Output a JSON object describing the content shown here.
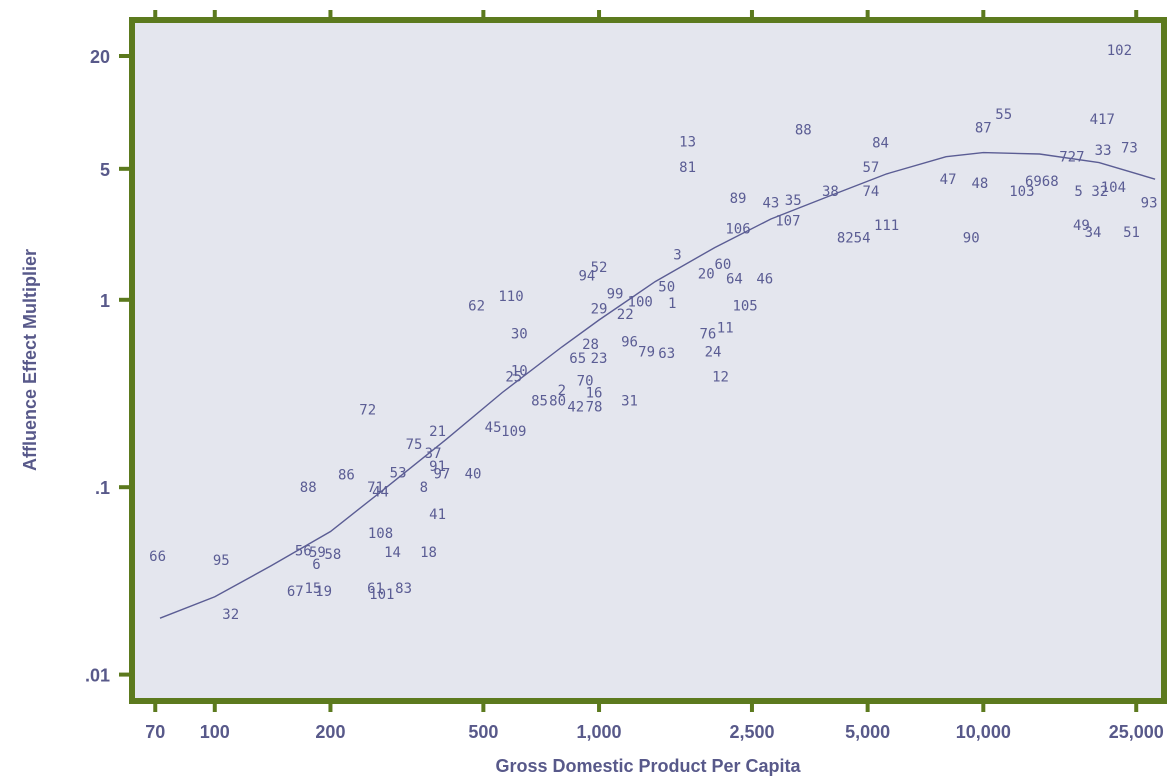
{
  "chart_data": {
    "type": "scatter",
    "title": "",
    "xlabel": "Gross Domestic Product Per Capita",
    "ylabel": "Affluence Effect Multiplier",
    "x_scale": "log",
    "y_scale": "log",
    "xlim": [
      62,
      29000
    ],
    "ylim": [
      0.0075,
      30
    ],
    "x_ticks": [
      {
        "value": 70,
        "label": "70"
      },
      {
        "value": 100,
        "label": "100"
      },
      {
        "value": 200,
        "label": "200"
      },
      {
        "value": 500,
        "label": "500"
      },
      {
        "value": 1000,
        "label": "1,000"
      },
      {
        "value": 2500,
        "label": "2,500"
      },
      {
        "value": 5000,
        "label": "5,000"
      },
      {
        "value": 10000,
        "label": "10,000"
      },
      {
        "value": 25000,
        "label": "25,000"
      }
    ],
    "y_ticks": [
      {
        "value": 0.01,
        "label": ".01"
      },
      {
        "value": 0.1,
        "label": ".1"
      },
      {
        "value": 1,
        "label": "1"
      },
      {
        "value": 5,
        "label": "5"
      },
      {
        "value": 20,
        "label": "20"
      }
    ],
    "grid": false,
    "colors": {
      "frame": "#5c7a1e",
      "plot_bg": "#e4e6ee",
      "text": "#58598a",
      "points": "#5b5d94"
    },
    "points": [
      {
        "label": "102",
        "x": 22600,
        "y": 21.5
      },
      {
        "label": "55",
        "x": 11300,
        "y": 9.8
      },
      {
        "label": "87",
        "x": 10000,
        "y": 8.3
      },
      {
        "label": "417",
        "x": 20400,
        "y": 9.2
      },
      {
        "label": "13",
        "x": 1700,
        "y": 7.0
      },
      {
        "label": "88",
        "x": 3400,
        "y": 8.1
      },
      {
        "label": "84",
        "x": 5400,
        "y": 6.9
      },
      {
        "label": "33",
        "x": 20500,
        "y": 6.3
      },
      {
        "label": "73",
        "x": 24000,
        "y": 6.5
      },
      {
        "label": "727",
        "x": 17000,
        "y": 5.8
      },
      {
        "label": "81",
        "x": 1700,
        "y": 5.1
      },
      {
        "label": "57",
        "x": 5100,
        "y": 5.1
      },
      {
        "label": "47",
        "x": 8100,
        "y": 4.4
      },
      {
        "label": "48",
        "x": 9800,
        "y": 4.2
      },
      {
        "label": "6968",
        "x": 14200,
        "y": 4.3
      },
      {
        "label": "103",
        "x": 12600,
        "y": 3.8
      },
      {
        "label": "5",
        "x": 17700,
        "y": 3.8
      },
      {
        "label": "32",
        "x": 20100,
        "y": 3.8
      },
      {
        "label": "104",
        "x": 21800,
        "y": 4.0
      },
      {
        "label": "93",
        "x": 27000,
        "y": 3.3
      },
      {
        "label": "89",
        "x": 2300,
        "y": 3.5
      },
      {
        "label": "43",
        "x": 2800,
        "y": 3.3
      },
      {
        "label": "35",
        "x": 3200,
        "y": 3.4
      },
      {
        "label": "38",
        "x": 4000,
        "y": 3.8
      },
      {
        "label": "74",
        "x": 5100,
        "y": 3.8
      },
      {
        "label": "106",
        "x": 2300,
        "y": 2.4
      },
      {
        "label": "107",
        "x": 3100,
        "y": 2.65
      },
      {
        "label": "111",
        "x": 5600,
        "y": 2.5
      },
      {
        "label": "8254",
        "x": 4600,
        "y": 2.15
      },
      {
        "label": "90",
        "x": 9300,
        "y": 2.15
      },
      {
        "label": "49",
        "x": 18000,
        "y": 2.5
      },
      {
        "label": "34",
        "x": 19300,
        "y": 2.3
      },
      {
        "label": "51",
        "x": 24300,
        "y": 2.3
      },
      {
        "label": "3",
        "x": 1600,
        "y": 1.75
      },
      {
        "label": "52",
        "x": 1000,
        "y": 1.5
      },
      {
        "label": "94",
        "x": 930,
        "y": 1.35
      },
      {
        "label": "60",
        "x": 2100,
        "y": 1.55
      },
      {
        "label": "20",
        "x": 1900,
        "y": 1.38
      },
      {
        "label": "64",
        "x": 2250,
        "y": 1.3
      },
      {
        "label": "46",
        "x": 2700,
        "y": 1.3
      },
      {
        "label": "50",
        "x": 1500,
        "y": 1.18
      },
      {
        "label": "110",
        "x": 590,
        "y": 1.05
      },
      {
        "label": "62",
        "x": 480,
        "y": 0.93
      },
      {
        "label": "99",
        "x": 1100,
        "y": 1.08
      },
      {
        "label": "100",
        "x": 1280,
        "y": 0.98
      },
      {
        "label": "1",
        "x": 1550,
        "y": 0.96
      },
      {
        "label": "29",
        "x": 1000,
        "y": 0.9
      },
      {
        "label": "22",
        "x": 1170,
        "y": 0.84
      },
      {
        "label": "105",
        "x": 2400,
        "y": 0.93
      },
      {
        "label": "11",
        "x": 2130,
        "y": 0.71
      },
      {
        "label": "76",
        "x": 1920,
        "y": 0.66
      },
      {
        "label": "30",
        "x": 620,
        "y": 0.66
      },
      {
        "label": "28",
        "x": 950,
        "y": 0.58
      },
      {
        "label": "96",
        "x": 1200,
        "y": 0.6
      },
      {
        "label": "79",
        "x": 1330,
        "y": 0.53
      },
      {
        "label": "63",
        "x": 1500,
        "y": 0.52
      },
      {
        "label": "24",
        "x": 1980,
        "y": 0.53
      },
      {
        "label": "65",
        "x": 880,
        "y": 0.49
      },
      {
        "label": "23",
        "x": 1000,
        "y": 0.49
      },
      {
        "label": "10",
        "x": 620,
        "y": 0.42
      },
      {
        "label": "25",
        "x": 600,
        "y": 0.39
      },
      {
        "label": "12",
        "x": 2070,
        "y": 0.39
      },
      {
        "label": "70",
        "x": 920,
        "y": 0.37
      },
      {
        "label": "2",
        "x": 800,
        "y": 0.33
      },
      {
        "label": "16",
        "x": 970,
        "y": 0.32
      },
      {
        "label": "85",
        "x": 700,
        "y": 0.29
      },
      {
        "label": "80",
        "x": 780,
        "y": 0.29
      },
      {
        "label": "42",
        "x": 870,
        "y": 0.27
      },
      {
        "label": "78",
        "x": 970,
        "y": 0.27
      },
      {
        "label": "31",
        "x": 1200,
        "y": 0.29
      },
      {
        "label": "45",
        "x": 530,
        "y": 0.21
      },
      {
        "label": "109",
        "x": 600,
        "y": 0.2
      },
      {
        "label": "72",
        "x": 250,
        "y": 0.26
      },
      {
        "label": "21",
        "x": 380,
        "y": 0.2
      },
      {
        "label": "75",
        "x": 330,
        "y": 0.17
      },
      {
        "label": "37",
        "x": 370,
        "y": 0.152
      },
      {
        "label": "91",
        "x": 380,
        "y": 0.13
      },
      {
        "label": "97",
        "x": 390,
        "y": 0.118
      },
      {
        "label": "40",
        "x": 470,
        "y": 0.118
      },
      {
        "label": "86",
        "x": 220,
        "y": 0.117
      },
      {
        "label": "53",
        "x": 300,
        "y": 0.12
      },
      {
        "label": "88",
        "x": 175,
        "y": 0.1
      },
      {
        "label": "71",
        "x": 262,
        "y": 0.1
      },
      {
        "label": "44",
        "x": 270,
        "y": 0.095
      },
      {
        "label": "8",
        "x": 350,
        "y": 0.1
      },
      {
        "label": "41",
        "x": 380,
        "y": 0.072
      },
      {
        "label": "108",
        "x": 270,
        "y": 0.057
      },
      {
        "label": "14",
        "x": 290,
        "y": 0.045
      },
      {
        "label": "18",
        "x": 360,
        "y": 0.045
      },
      {
        "label": "56",
        "x": 170,
        "y": 0.046
      },
      {
        "label": "59",
        "x": 185,
        "y": 0.045
      },
      {
        "label": "58",
        "x": 203,
        "y": 0.044
      },
      {
        "label": "6",
        "x": 184,
        "y": 0.039
      },
      {
        "label": "66",
        "x": 71,
        "y": 0.043
      },
      {
        "label": "95",
        "x": 104,
        "y": 0.041
      },
      {
        "label": "67",
        "x": 162,
        "y": 0.028
      },
      {
        "label": "15",
        "x": 180,
        "y": 0.029
      },
      {
        "label": "19",
        "x": 192,
        "y": 0.028
      },
      {
        "label": "61",
        "x": 262,
        "y": 0.029
      },
      {
        "label": "101",
        "x": 272,
        "y": 0.027
      },
      {
        "label": "83",
        "x": 310,
        "y": 0.029
      },
      {
        "label": "32",
        "x": 110,
        "y": 0.021
      }
    ],
    "fit_curve": {
      "type": "line",
      "x": [
        72,
        100,
        140,
        200,
        280,
        400,
        560,
        800,
        1000,
        1400,
        2000,
        2800,
        4000,
        5600,
        8000,
        10000,
        14000,
        20000,
        28000
      ],
      "y": [
        0.02,
        0.026,
        0.038,
        0.058,
        0.1,
        0.18,
        0.32,
        0.56,
        0.78,
        1.25,
        1.9,
        2.7,
        3.6,
        4.7,
        5.8,
        6.1,
        6.0,
        5.4,
        4.4
      ]
    }
  }
}
